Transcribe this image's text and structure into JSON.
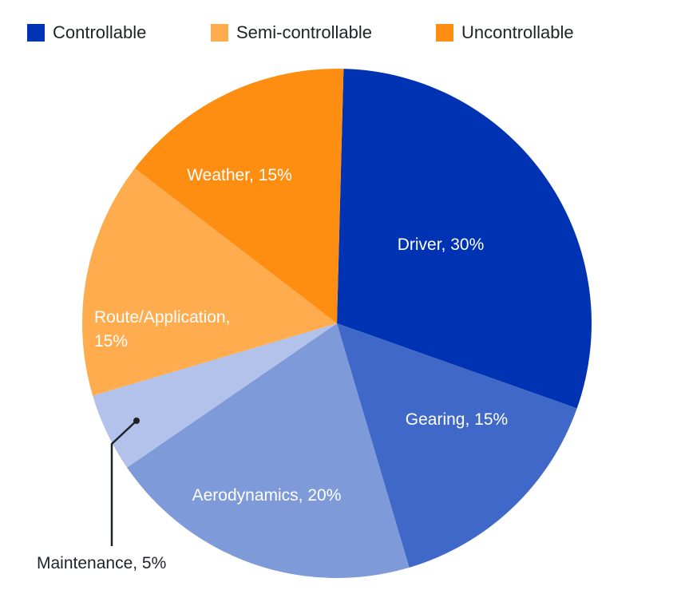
{
  "chart_data": {
    "type": "pie",
    "legend": [
      {
        "label": "Controllable",
        "color": "#0033b4"
      },
      {
        "label": "Semi-controllable",
        "color": "#feac4e"
      },
      {
        "label": "Uncontrollable",
        "color": "#fe8e12"
      }
    ],
    "slices": [
      {
        "category": "Driver",
        "value": 30,
        "label": "Driver, 30%",
        "color": "#0033b4",
        "group": "Controllable"
      },
      {
        "category": "Gearing",
        "value": 15,
        "label": "Gearing, 15%",
        "color": "#4068c8",
        "group": "Controllable"
      },
      {
        "category": "Aerodynamics",
        "value": 20,
        "label": "Aerodynamics, 20%",
        "color": "#7f9ad8",
        "group": "Controllable"
      },
      {
        "category": "Maintenance",
        "value": 5,
        "label": "Maintenance, 5%",
        "color": "#b2c2ea",
        "group": "Controllable"
      },
      {
        "category": "Route/Application",
        "value": 15,
        "label_lines": [
          "Route/Application,",
          "15%"
        ],
        "color": "#feac4e",
        "group": "Semi-controllable"
      },
      {
        "category": "Weather",
        "value": 15,
        "label": "Weather, 15%",
        "color": "#fe8e12",
        "group": "Uncontrollable"
      }
    ],
    "legend_position": "top"
  }
}
